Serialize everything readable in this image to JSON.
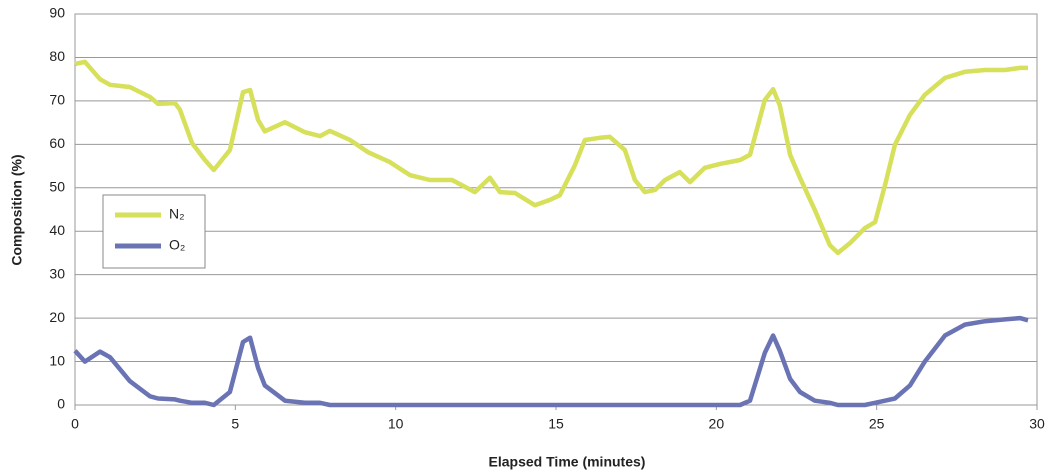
{
  "chart_data": {
    "type": "line",
    "xlabel": "Elapsed Time (minutes)",
    "ylabel": "Composition (%)",
    "x": [
      0,
      0.31,
      0.78,
      1.09,
      1.71,
      2.34,
      2.59,
      3.12,
      3.27,
      3.65,
      4.05,
      4.33,
      4.83,
      5.24,
      5.46,
      5.71,
      5.92,
      6.55,
      7.17,
      7.64,
      7.95,
      8.58,
      9.14,
      9.82,
      10.45,
      11.07,
      11.76,
      12.47,
      12.94,
      13.25,
      13.72,
      14.34,
      14.81,
      15.12,
      15.59,
      15.9,
      16.37,
      16.68,
      17.15,
      17.46,
      17.77,
      18.09,
      18.4,
      18.86,
      19.18,
      19.64,
      20.11,
      20.74,
      21.05,
      21.51,
      21.77,
      21.98,
      22.3,
      22.61,
      23.07,
      23.54,
      23.79,
      24.17,
      24.63,
      24.95,
      25.26,
      25.57,
      26.04,
      26.5,
      27.13,
      27.75,
      28.38,
      29,
      29.47,
      29.72
    ],
    "series": [
      {
        "name": "N₂",
        "color": "#d6e05a",
        "values": [
          78.5,
          79,
          75,
          73.7,
          73.2,
          70.9,
          69.3,
          69.5,
          68,
          60.3,
          56.4,
          54.1,
          58.7,
          72,
          72.5,
          65.6,
          63,
          65.1,
          62.8,
          61.9,
          63.1,
          61,
          58.2,
          55.9,
          52.9,
          51.8,
          51.8,
          49,
          52.3,
          49,
          48.8,
          46,
          47.2,
          48.3,
          55.2,
          61,
          61.5,
          61.7,
          58.7,
          51.8,
          49,
          49.5,
          51.8,
          53.6,
          51.3,
          54.6,
          55.5,
          56.4,
          57.6,
          70.2,
          72.7,
          69,
          57.6,
          52.3,
          44.9,
          36.8,
          35,
          37.3,
          40.7,
          42.1,
          50.6,
          59.9,
          66.8,
          71.4,
          75.3,
          76.7,
          77.1,
          77.1,
          77.6,
          77.6
        ]
      },
      {
        "name": "O₂",
        "color": "#6a74b4",
        "values": [
          12.5,
          10,
          12.3,
          11,
          5.5,
          2,
          1.5,
          1.3,
          1,
          0.5,
          0.5,
          0,
          3,
          14.5,
          15.5,
          8.5,
          4.5,
          1,
          0.5,
          0.5,
          0,
          0,
          0,
          0,
          0,
          0,
          0,
          0,
          0,
          0,
          0,
          0,
          0,
          0,
          0,
          0,
          0,
          0,
          0,
          0,
          0,
          0,
          0,
          0,
          0,
          0,
          0,
          0,
          1,
          12,
          16,
          12.5,
          6,
          3,
          1,
          0.5,
          0,
          0,
          0,
          0.5,
          1,
          1.5,
          4.5,
          10,
          16,
          18.5,
          19.3,
          19.7,
          20,
          19.5
        ]
      }
    ],
    "xlim": [
      0,
      30
    ],
    "xticks": [
      0,
      5,
      10,
      15,
      20,
      25,
      30
    ],
    "ylim": [
      0,
      90
    ],
    "yticks": [
      0,
      10,
      20,
      30,
      40,
      50,
      60,
      70,
      80,
      90
    ],
    "grid": true,
    "legend": "left"
  }
}
